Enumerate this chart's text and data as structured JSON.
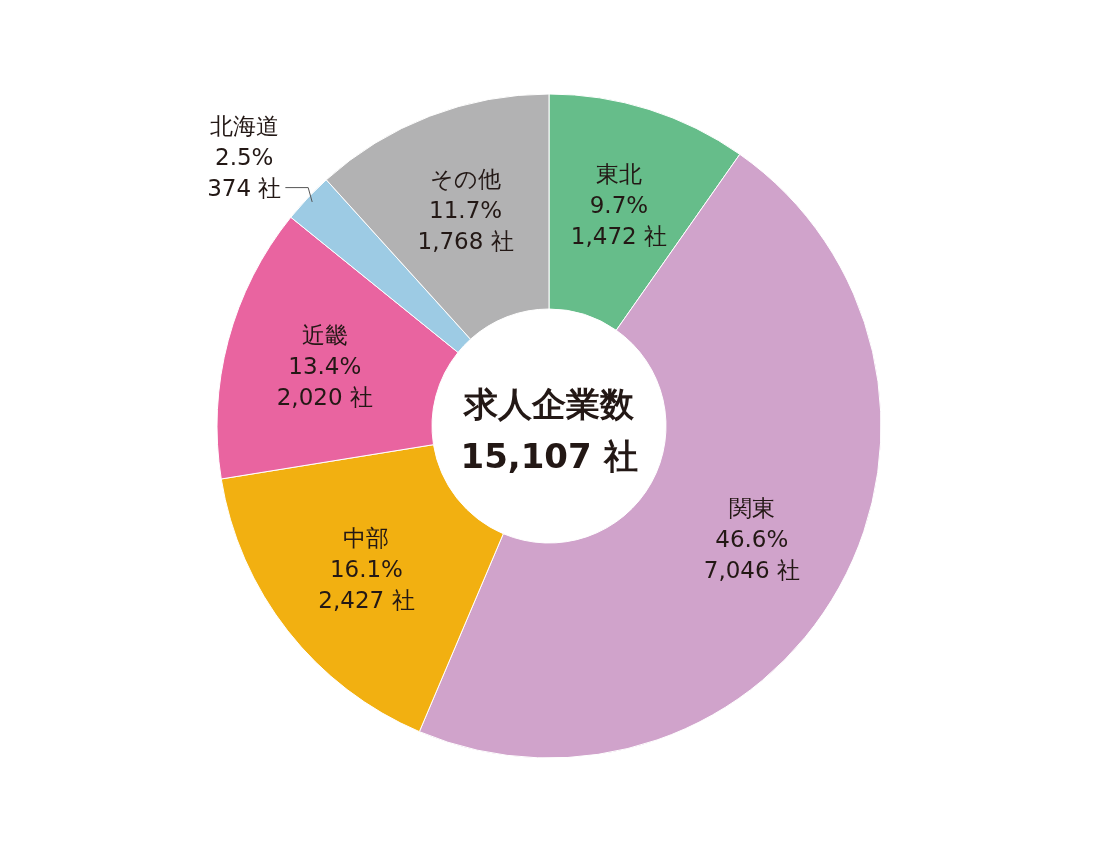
{
  "chart_data": {
    "type": "donut",
    "title": "求人企業数",
    "annotations": [
      "15,107 社"
    ],
    "categories": [
      "東北",
      "関東",
      "中部",
      "近畿",
      "北海道",
      "その他"
    ],
    "values": [
      1472,
      7046,
      2427,
      2020,
      374,
      1768
    ],
    "value_labels": [
      "9.7%\n1,472 社",
      "46.6%\n7,046 社",
      "16.1%\n2,427 社",
      "13.4%\n2,020 社",
      "2.5%\n374 社",
      "11.7%\n1,768 社"
    ],
    "colors": [
      "#66bd8a",
      "#d0a3cb",
      "#f2b011",
      "#e964a0",
      "#9dcbe4",
      "#b2b2b3"
    ],
    "legend": false
  }
}
